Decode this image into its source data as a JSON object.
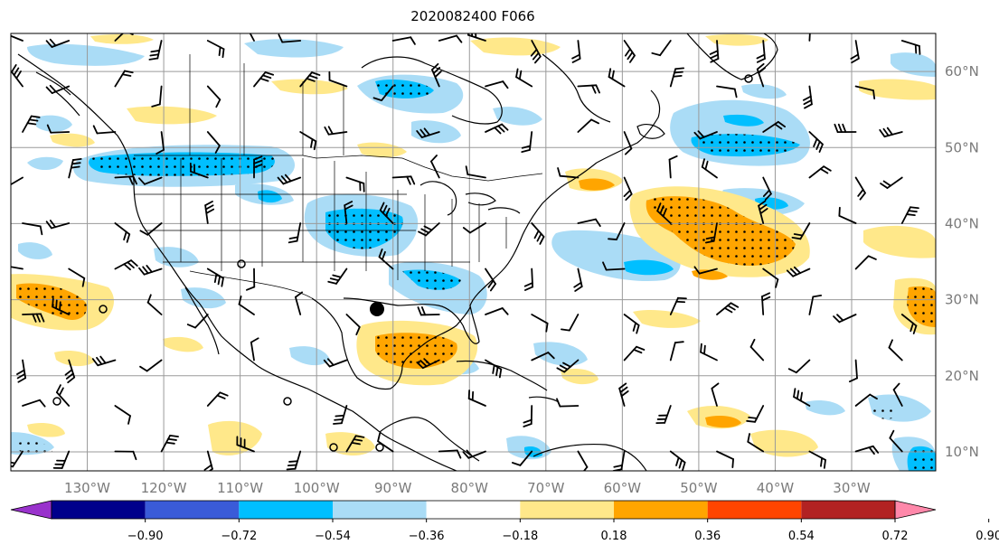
{
  "title": "2020082400 F066",
  "lon_labels": [
    "130°W",
    "120°W",
    "110°W",
    "100°W",
    "90°W",
    "80°W",
    "70°W",
    "60°W",
    "50°W",
    "40°W",
    "30°W"
  ],
  "lat_labels": [
    "60°N",
    "50°N",
    "40°N",
    "30°N",
    "20°N",
    "10°N"
  ],
  "colorbar": {
    "tick_labels": [
      "−0.90",
      "−0.72",
      "−0.54",
      "−0.36",
      "−0.18",
      "0.18",
      "0.36",
      "0.54",
      "0.72",
      "0.90"
    ],
    "colors": [
      "#9932cc",
      "#00008b",
      "#3a5bd8",
      "#00bfff",
      "#aadcf6",
      "#ffffff",
      "#ffe88a",
      "#ffa500",
      "#ff4500",
      "#b22222",
      "#ff88aa"
    ]
  },
  "map": {
    "projection": "PlateCarree",
    "lon_range": [
      -140,
      -19
    ],
    "lat_range": [
      7.5,
      65
    ],
    "marker": {
      "label": "storm-center",
      "lon": -91,
      "lat": 29
    }
  }
}
